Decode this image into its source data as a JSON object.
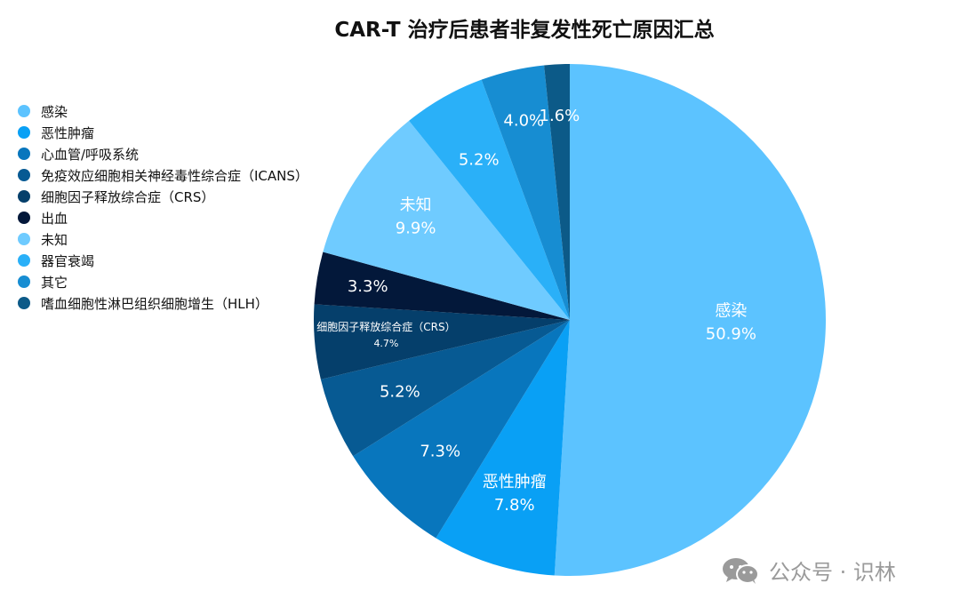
{
  "chart_data": {
    "type": "pie",
    "title": "CAR-T 治疗后患者非复发性死亡原因汇总",
    "legend_position": "left",
    "slices": [
      {
        "legend": "感染",
        "value": 50.9,
        "label": "感染",
        "value_label": "50.9%",
        "color": "#5CC3FF"
      },
      {
        "legend": "恶性肿瘤",
        "value": 7.8,
        "label": "恶性肿瘤",
        "value_label": "7.8%",
        "color": "#09A0F5"
      },
      {
        "legend": "心血管/呼吸系统",
        "value": 7.3,
        "label": "",
        "value_label": "7.3%",
        "color": "#0876BD"
      },
      {
        "legend": "免疫效应细胞相关神经毒性综合症（ICANS）",
        "value": 5.2,
        "label": "",
        "value_label": "5.2%",
        "color": "#075A93"
      },
      {
        "legend": "细胞因子释放综合症（CRS）",
        "value": 4.7,
        "label": "细胞因子释放综合症（CRS）",
        "value_label": "4.7%",
        "color": "#053F6B"
      },
      {
        "legend": "出血",
        "value": 3.3,
        "label": "",
        "value_label": "3.3%",
        "color": "#03183A"
      },
      {
        "legend": "未知",
        "value": 9.9,
        "label": "未知",
        "value_label": "9.9%",
        "color": "#6FCBFF"
      },
      {
        "legend": "器官衰竭",
        "value": 5.2,
        "label": "",
        "value_label": "5.2%",
        "color": "#2AB0F8"
      },
      {
        "legend": "其它",
        "value": 4.0,
        "label": "",
        "value_label": "4.0%",
        "color": "#178DD2"
      },
      {
        "legend": "嗜血细胞性淋巴组织细胞增生（HLH）",
        "value": 1.6,
        "label": "",
        "value_label": "1.6%",
        "color": "#0C5A88"
      }
    ]
  },
  "watermark": {
    "text": "公众号 · 识林",
    "icon": "wechat-icon",
    "color": "#9A9A9A"
  }
}
